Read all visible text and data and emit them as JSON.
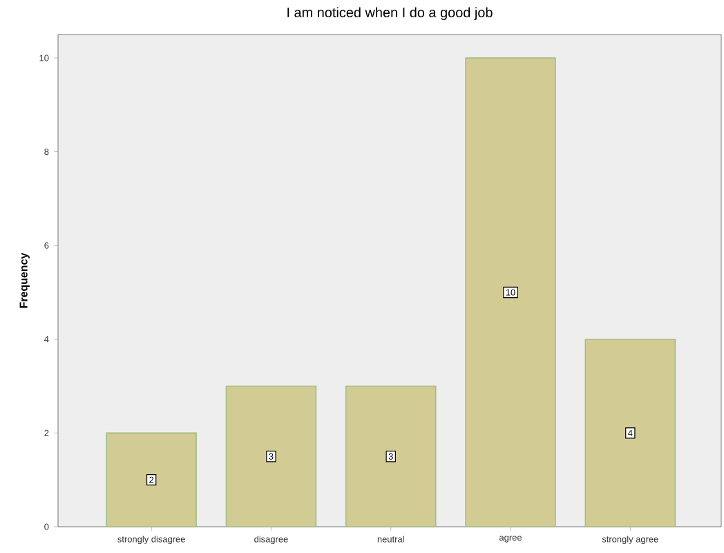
{
  "chart_data": {
    "type": "bar",
    "title": "I am noticed when I do a good job",
    "ylabel": "Frequency",
    "categories": [
      "strongly disagree",
      "disagree",
      "neutral",
      "agree",
      "strongly agree"
    ],
    "values": [
      2,
      3,
      3,
      10,
      4
    ],
    "color": "#d2cb94",
    "ylim": [
      0,
      10.5
    ],
    "yticks": [
      0,
      2,
      4,
      6,
      8,
      10
    ],
    "grid": false,
    "data_labels": true
  }
}
